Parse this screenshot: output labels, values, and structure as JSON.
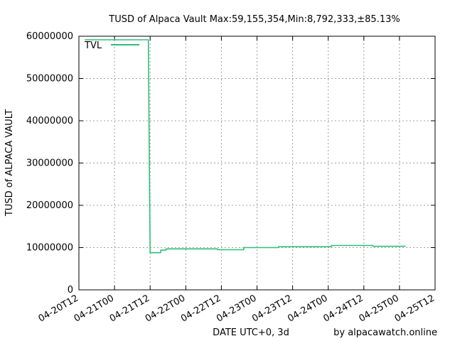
{
  "chart_data": {
    "type": "line",
    "title": "TUSD of Alpaca Vault Max:59,155,354,Min:8,792,333,±85.13%",
    "xlabel": "DATE UTC+0, 3d",
    "ylabel": "TUSD of ALPACA VAULT",
    "credit": "by alpacawatch.online",
    "ylim": [
      0,
      60000000
    ],
    "xlim_hours": [
      0,
      120
    ],
    "grid": true,
    "legend_position": "top-left",
    "x_ticks": [
      {
        "label": "04-20T12",
        "h": 0
      },
      {
        "label": "04-21T00",
        "h": 12
      },
      {
        "label": "04-21T12",
        "h": 24
      },
      {
        "label": "04-22T00",
        "h": 36
      },
      {
        "label": "04-22T12",
        "h": 48
      },
      {
        "label": "04-23T00",
        "h": 60
      },
      {
        "label": "04-23T12",
        "h": 72
      },
      {
        "label": "04-24T00",
        "h": 84
      },
      {
        "label": "04-24T12",
        "h": 96
      },
      {
        "label": "04-25T00",
        "h": 108
      },
      {
        "label": "04-25T12",
        "h": 120
      }
    ],
    "y_ticks": [
      {
        "label": "0",
        "v": 0
      },
      {
        "label": "10000000",
        "v": 10000000
      },
      {
        "label": "20000000",
        "v": 20000000
      },
      {
        "label": "30000000",
        "v": 30000000
      },
      {
        "label": "40000000",
        "v": 40000000
      },
      {
        "label": "50000000",
        "v": 50000000
      },
      {
        "label": "60000000",
        "v": 60000000
      }
    ],
    "series": [
      {
        "name": "TVL",
        "color": "#2dbf7a",
        "step": true,
        "points": [
          [
            2.0,
            59155354
          ],
          [
            23.4,
            59155354
          ],
          [
            23.7,
            34000000
          ],
          [
            24.0,
            8792333
          ],
          [
            27.5,
            8792333
          ],
          [
            27.6,
            9400000
          ],
          [
            29.3,
            9400000
          ],
          [
            29.4,
            9700000
          ],
          [
            46.6,
            9700000
          ],
          [
            46.7,
            9500000
          ],
          [
            55.5,
            9500000
          ],
          [
            55.6,
            10000000
          ],
          [
            67.2,
            10000000
          ],
          [
            67.3,
            10200000
          ],
          [
            85.0,
            10200000
          ],
          [
            85.1,
            10500000
          ],
          [
            99.0,
            10500000
          ],
          [
            99.1,
            10300000
          ],
          [
            110.0,
            10300000
          ]
        ]
      }
    ]
  }
}
